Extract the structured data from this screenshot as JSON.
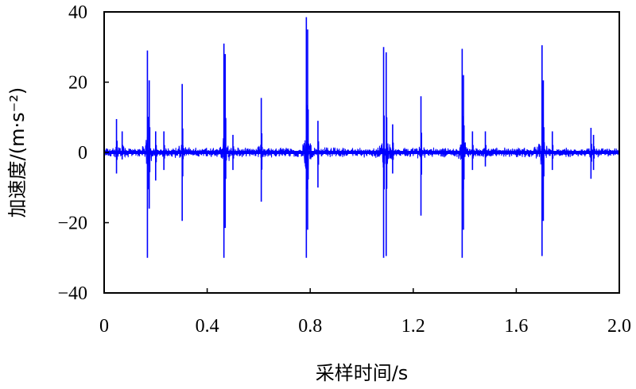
{
  "chart_data": {
    "type": "line",
    "xlabel": "采样时间/s",
    "ylabel": "加速度/(m·s⁻²)",
    "xlim": [
      0,
      2.0
    ],
    "ylim": [
      -40,
      40
    ],
    "xticks": [
      0,
      0.4,
      0.8,
      1.2,
      1.6,
      2.0
    ],
    "xtick_labels": [
      "0",
      "0.4",
      "0.8",
      "1.2",
      "1.6",
      "2.0"
    ],
    "yticks": [
      -40,
      -20,
      0,
      20,
      40
    ],
    "ytick_labels": [
      "−40",
      "−20",
      "0",
      "20",
      "40"
    ],
    "grid": false,
    "series_color": "#0000ff",
    "baseline_noise_amplitude": 1.5,
    "spikes": [
      {
        "x": 0.048,
        "max": 9.5,
        "min": -6
      },
      {
        "x": 0.07,
        "max": 6,
        "min": -2
      },
      {
        "x": 0.168,
        "max": 29,
        "min": -30
      },
      {
        "x": 0.175,
        "max": 20.5,
        "min": -16
      },
      {
        "x": 0.2,
        "max": 6,
        "min": -8
      },
      {
        "x": 0.232,
        "max": 6,
        "min": -5
      },
      {
        "x": 0.303,
        "max": 19.5,
        "min": -19.5
      },
      {
        "x": 0.465,
        "max": 31,
        "min": -30
      },
      {
        "x": 0.47,
        "max": 28,
        "min": -21.5
      },
      {
        "x": 0.5,
        "max": 5,
        "min": -5
      },
      {
        "x": 0.61,
        "max": 15.5,
        "min": -14
      },
      {
        "x": 0.785,
        "max": 38.5,
        "min": -30
      },
      {
        "x": 0.79,
        "max": 35,
        "min": -22
      },
      {
        "x": 0.83,
        "max": 9,
        "min": -10
      },
      {
        "x": 1.085,
        "max": 30,
        "min": -30
      },
      {
        "x": 1.095,
        "max": 28.5,
        "min": -29.5
      },
      {
        "x": 1.12,
        "max": 8,
        "min": -6
      },
      {
        "x": 1.23,
        "max": 16,
        "min": -18
      },
      {
        "x": 1.39,
        "max": 29.5,
        "min": -30
      },
      {
        "x": 1.395,
        "max": 22,
        "min": -22
      },
      {
        "x": 1.43,
        "max": 6,
        "min": -5
      },
      {
        "x": 1.48,
        "max": 6,
        "min": -4
      },
      {
        "x": 1.7,
        "max": 30.5,
        "min": -29.5
      },
      {
        "x": 1.705,
        "max": 20.5,
        "min": -19.5
      },
      {
        "x": 1.74,
        "max": 6,
        "min": -5
      },
      {
        "x": 1.89,
        "max": 7,
        "min": -7.5
      },
      {
        "x": 1.9,
        "max": 5,
        "min": -5
      }
    ]
  }
}
